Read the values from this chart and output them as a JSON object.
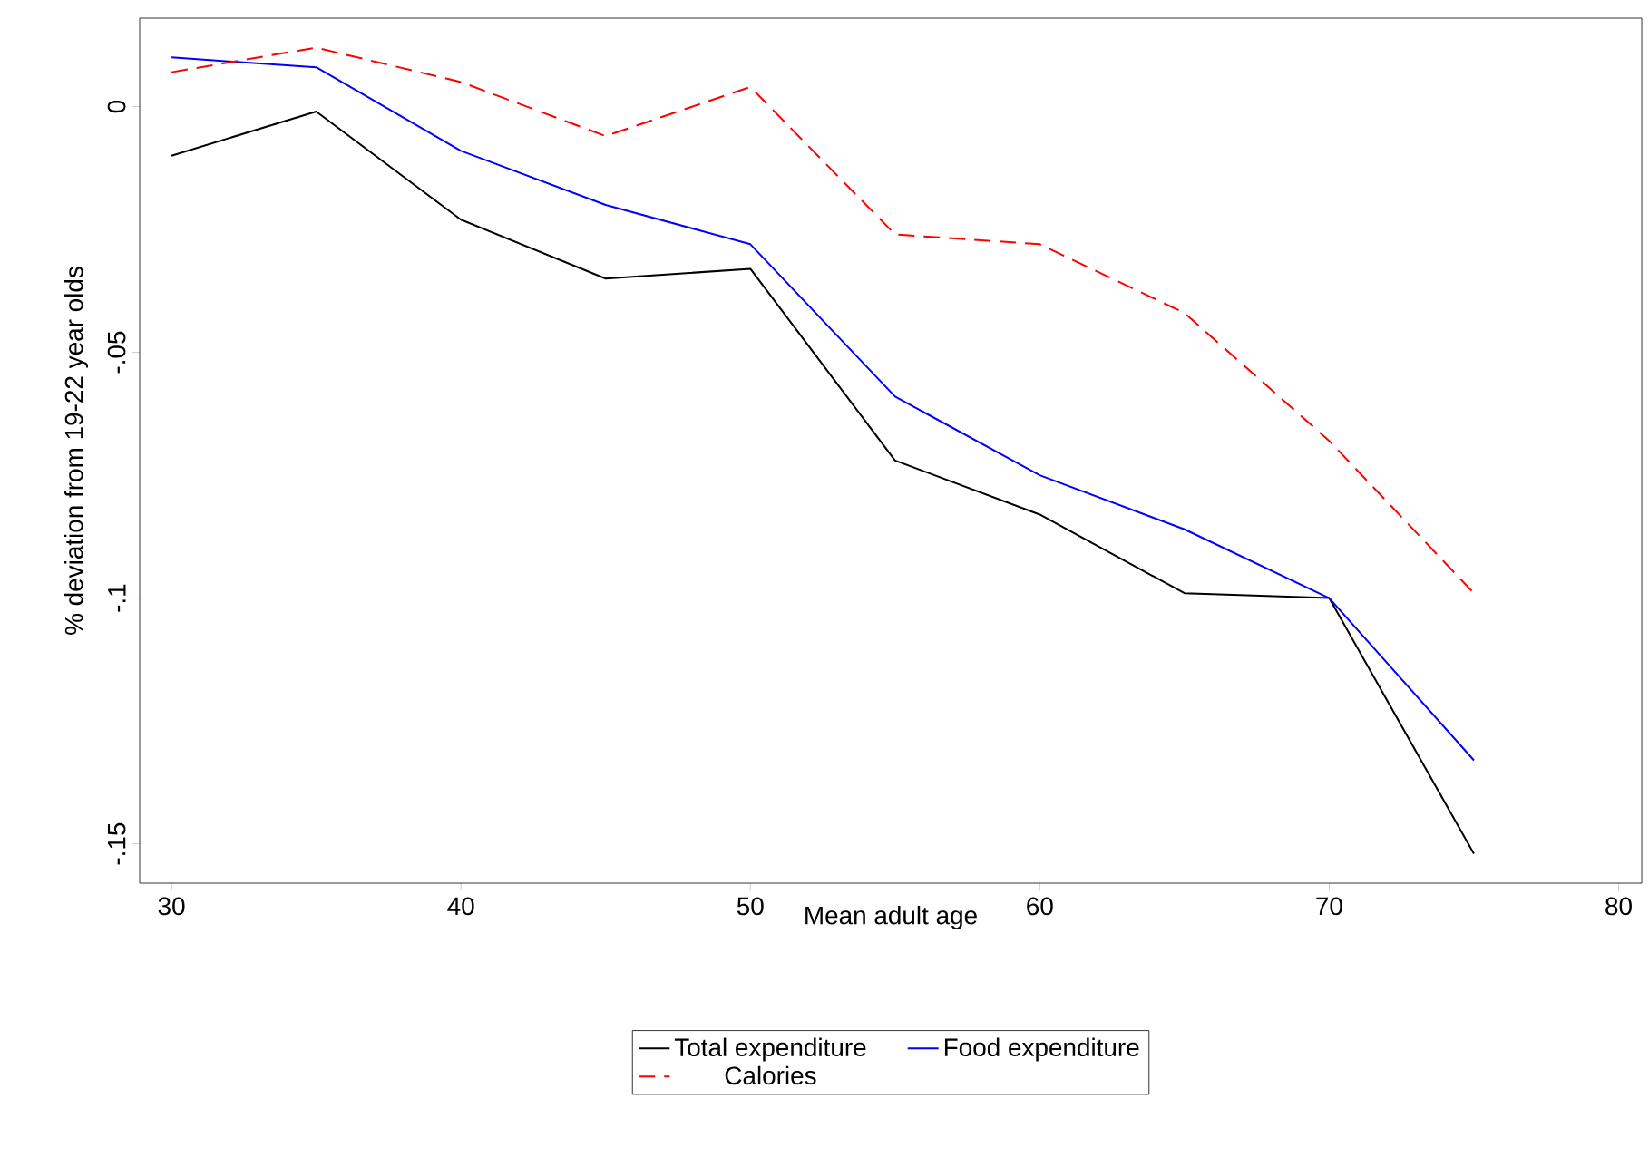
{
  "chart_data": {
    "type": "line",
    "xlabel": "Mean adult age",
    "ylabel": "% deviation from 19-22 year olds",
    "x": [
      30,
      35,
      40,
      45,
      50,
      55,
      60,
      65,
      70,
      75
    ],
    "series": [
      {
        "name": "Total expenditure",
        "color": "#000000",
        "line_style": "solid",
        "values": [
          -0.01,
          -0.001,
          -0.023,
          -0.035,
          -0.033,
          -0.072,
          -0.083,
          -0.099,
          -0.1,
          -0.152
        ]
      },
      {
        "name": "Food expenditure",
        "color": "#0000ff",
        "line_style": "solid",
        "values": [
          0.01,
          0.008,
          -0.009,
          -0.02,
          -0.028,
          -0.059,
          -0.075,
          -0.086,
          -0.1,
          -0.133
        ]
      },
      {
        "name": "Calories",
        "color": "#ff0000",
        "line_style": "dashed",
        "values": [
          0.007,
          0.012,
          0.005,
          -0.006,
          0.004,
          -0.026,
          -0.028,
          -0.042,
          -0.068,
          -0.099
        ]
      }
    ],
    "xlim": [
      28.9,
      80.8
    ],
    "ylim": [
      -0.158,
      0.018
    ],
    "xticks": [
      30,
      40,
      50,
      60,
      70,
      80
    ],
    "yticks": [
      {
        "value": 0,
        "label": "0"
      },
      {
        "value": -0.05,
        "label": "-.05"
      },
      {
        "value": -0.1,
        "label": "-.1"
      },
      {
        "value": -0.15,
        "label": "-.15"
      }
    ],
    "grid": false,
    "legend": "bottom",
    "marker": "none"
  }
}
